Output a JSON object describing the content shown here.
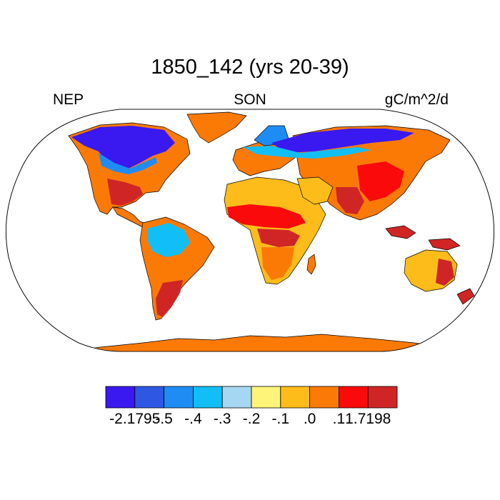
{
  "title": "1850_142 (yrs 20-39)",
  "left_label": "NEP",
  "center_label": "SON",
  "right_label": "gC/m^2/d",
  "colorbar": {
    "colors": [
      "#3a18f0",
      "#2e58e4",
      "#1f8cf4",
      "#12bef7",
      "#a6d7f2",
      "#fff47a",
      "#fdbc19",
      "#fb7a06",
      "#fa0a0a",
      "#d02525"
    ],
    "labels": [
      "-2.1795",
      "-.5",
      "-.4",
      "-.3",
      "-.2",
      "-.1",
      ".0",
      ".1",
      "1.7198"
    ]
  },
  "map": {
    "projection": "Robinson",
    "ocean_color": "#ffffff",
    "coastline_color": "#000000"
  }
}
